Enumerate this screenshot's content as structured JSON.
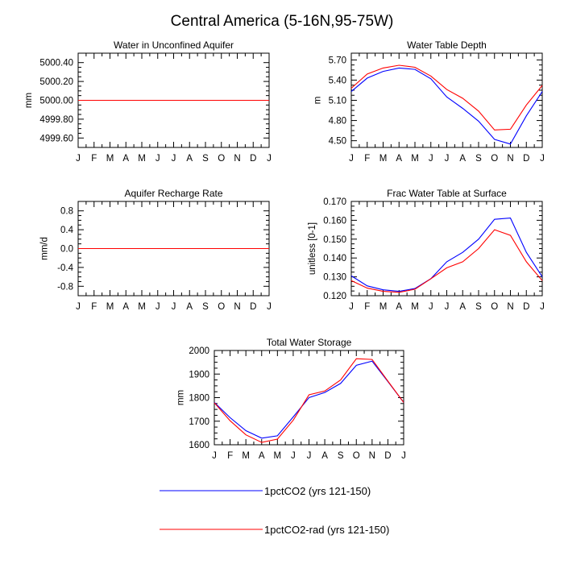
{
  "figure": {
    "title": "Central America (5-16N,95-75W)"
  },
  "legend": {
    "items": [
      {
        "label": "1pctCO2 (yrs 121-150)",
        "color": "#0000ff"
      },
      {
        "label": "1pctCO2-rad (yrs 121-150)",
        "color": "#ff0000"
      }
    ]
  },
  "chart_data": [
    {
      "type": "line",
      "title": "Water in Unconfined Aquifer",
      "ylabel": "mm",
      "x": [
        "J",
        "F",
        "M",
        "A",
        "M",
        "J",
        "J",
        "A",
        "S",
        "O",
        "N",
        "D",
        "J"
      ],
      "ylim": [
        4999.5,
        5000.5
      ],
      "yticks": [
        4999.6,
        4999.8,
        5000.0,
        5000.2,
        5000.4
      ],
      "ytick_labels": [
        "4999.60",
        "4999.80",
        "5000.00",
        "5000.20",
        "5000.40"
      ],
      "series": [
        {
          "color": "#0000ff",
          "values": [
            5000,
            5000,
            5000,
            5000,
            5000,
            5000,
            5000,
            5000,
            5000,
            5000,
            5000,
            5000,
            5000
          ]
        },
        {
          "color": "#ff0000",
          "values": [
            5000,
            5000,
            5000,
            5000,
            5000,
            5000,
            5000,
            5000,
            5000,
            5000,
            5000,
            5000,
            5000
          ]
        }
      ]
    },
    {
      "type": "line",
      "title": "Water Table Depth",
      "ylabel": "m",
      "x": [
        "J",
        "F",
        "M",
        "A",
        "M",
        "J",
        "J",
        "A",
        "S",
        "O",
        "N",
        "D",
        "J"
      ],
      "ylim": [
        4.4,
        5.8
      ],
      "yticks": [
        4.5,
        4.8,
        5.1,
        5.4,
        5.7
      ],
      "ytick_labels": [
        "4.50",
        "4.80",
        "5.10",
        "5.40",
        "5.70"
      ],
      "series": [
        {
          "color": "#0000ff",
          "values": [
            5.23,
            5.43,
            5.53,
            5.58,
            5.56,
            5.42,
            5.15,
            4.98,
            4.79,
            4.52,
            4.45,
            4.87,
            5.23
          ]
        },
        {
          "color": "#ff0000",
          "values": [
            5.28,
            5.49,
            5.58,
            5.62,
            5.59,
            5.46,
            5.26,
            5.13,
            4.94,
            4.66,
            4.67,
            5.03,
            5.32
          ]
        }
      ]
    },
    {
      "type": "line",
      "title": "Aquifer Recharge Rate",
      "ylabel": "mm/d",
      "x": [
        "J",
        "F",
        "M",
        "A",
        "M",
        "J",
        "J",
        "A",
        "S",
        "O",
        "N",
        "D",
        "J"
      ],
      "ylim": [
        -1.0,
        1.0
      ],
      "yticks": [
        -0.8,
        -0.4,
        0.0,
        0.4,
        0.8
      ],
      "ytick_labels": [
        "-0.8",
        "-0.4",
        "0.0",
        "0.4",
        "0.8"
      ],
      "series": [
        {
          "color": "#0000ff",
          "values": [
            0,
            0,
            0,
            0,
            0,
            0,
            0,
            0,
            0,
            0,
            0,
            0,
            0
          ]
        },
        {
          "color": "#ff0000",
          "values": [
            0,
            0,
            0,
            0,
            0,
            0,
            0,
            0,
            0,
            0,
            0,
            0,
            0
          ]
        }
      ]
    },
    {
      "type": "line",
      "title": "Frac Water Table at Surface",
      "ylabel": "unitless [0-1]",
      "x": [
        "J",
        "F",
        "M",
        "A",
        "M",
        "J",
        "J",
        "A",
        "S",
        "O",
        "N",
        "D",
        "J"
      ],
      "ylim": [
        0.12,
        0.17
      ],
      "yticks": [
        0.12,
        0.13,
        0.14,
        0.15,
        0.16,
        0.17
      ],
      "ytick_labels": [
        "0.120",
        "0.130",
        "0.140",
        "0.150",
        "0.160",
        "0.170"
      ],
      "series": [
        {
          "color": "#0000ff",
          "values": [
            0.1305,
            0.1252,
            0.1231,
            0.1223,
            0.1238,
            0.129,
            0.138,
            0.143,
            0.15,
            0.1605,
            0.1612,
            0.143,
            0.13
          ]
        },
        {
          "color": "#ff0000",
          "values": [
            0.128,
            0.124,
            0.1223,
            0.1218,
            0.1234,
            0.129,
            0.1348,
            0.138,
            0.145,
            0.155,
            0.152,
            0.138,
            0.128
          ]
        }
      ]
    },
    {
      "type": "line",
      "title": "Total Water Storage",
      "ylabel": "mm",
      "x": [
        "J",
        "F",
        "M",
        "A",
        "M",
        "J",
        "J",
        "A",
        "S",
        "O",
        "N",
        "D",
        "J"
      ],
      "ylim": [
        1600,
        2000
      ],
      "yticks": [
        1600,
        1700,
        1800,
        1900,
        2000
      ],
      "ytick_labels": [
        "1600",
        "1700",
        "1800",
        "1900",
        "2000"
      ],
      "series": [
        {
          "color": "#0000ff",
          "values": [
            1780,
            1715,
            1660,
            1628,
            1638,
            1718,
            1800,
            1822,
            1860,
            1937,
            1955,
            1868,
            1780
          ]
        },
        {
          "color": "#ff0000",
          "values": [
            1778,
            1702,
            1642,
            1610,
            1624,
            1704,
            1812,
            1828,
            1875,
            1965,
            1962,
            1870,
            1780
          ]
        }
      ]
    }
  ]
}
